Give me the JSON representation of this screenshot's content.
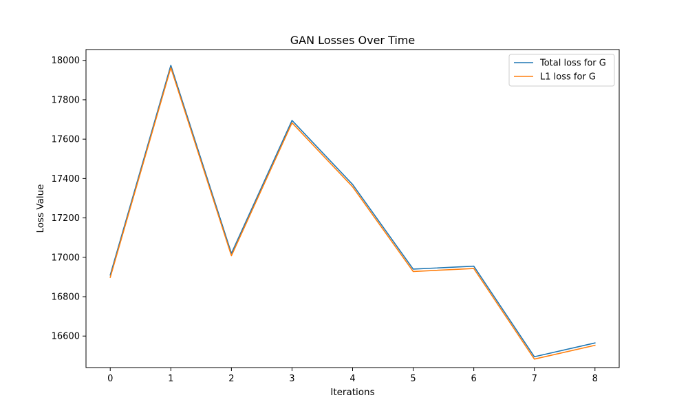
{
  "chart_data": {
    "type": "line",
    "title": "GAN Losses Over Time",
    "xlabel": "Iterations",
    "ylabel": "Loss Value",
    "x": [
      0,
      1,
      2,
      3,
      4,
      5,
      6,
      7,
      8
    ],
    "xlim": [
      -0.4,
      8.4
    ],
    "ylim": [
      16440,
      18055
    ],
    "xticks": [
      0,
      1,
      2,
      3,
      4,
      5,
      6,
      7,
      8
    ],
    "yticks": [
      16600,
      16800,
      17000,
      17200,
      17400,
      17600,
      17800,
      18000
    ],
    "grid": false,
    "legend_position": "top-right",
    "series": [
      {
        "name": "Total loss for G",
        "color": "#1f77b4",
        "values": [
          16910,
          17975,
          17020,
          17695,
          17370,
          16940,
          16955,
          16495,
          16565
        ]
      },
      {
        "name": "L1 loss for G",
        "color": "#ff7f0e",
        "values": [
          16898,
          17963,
          17008,
          17683,
          17358,
          16928,
          16943,
          16483,
          16553
        ]
      }
    ]
  }
}
